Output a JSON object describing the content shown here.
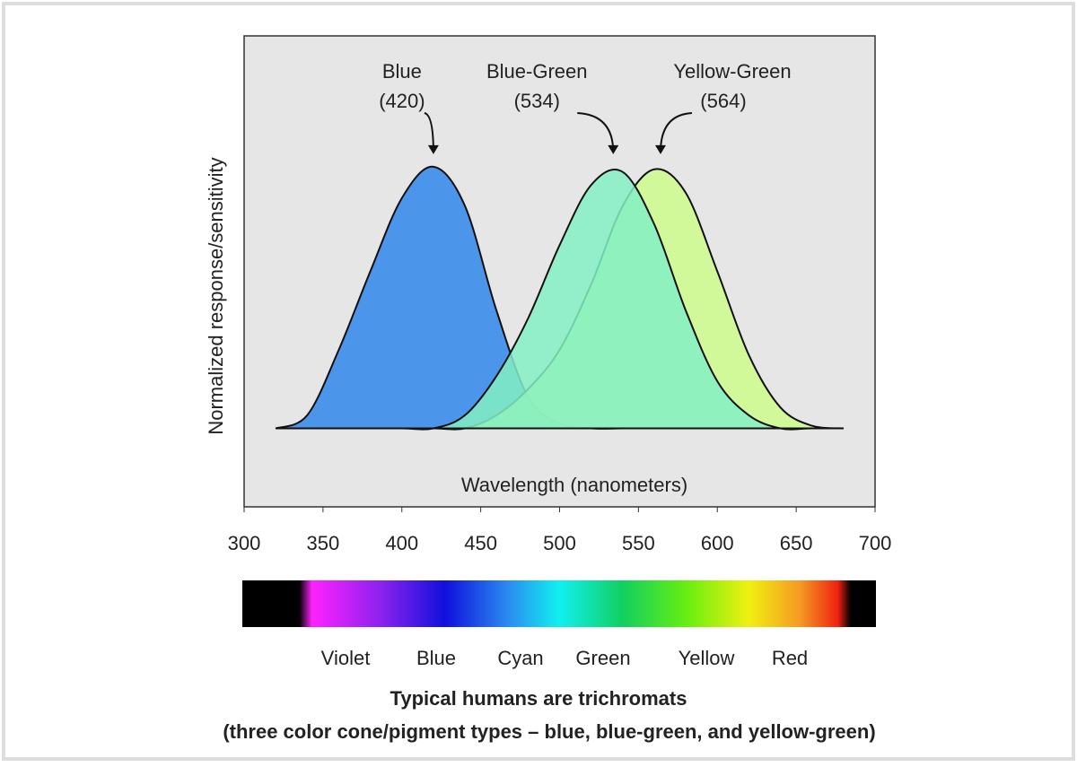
{
  "chart_data": {
    "type": "area",
    "y_label": "Normalized response/sensitivity",
    "x_label": "Wavelength (nanometers)",
    "x": [
      320,
      340,
      360,
      380,
      400,
      420,
      440,
      460,
      480,
      500,
      520,
      540,
      560,
      580,
      600,
      620,
      640,
      660,
      680
    ],
    "series": [
      {
        "name": "Blue",
        "color": "#2f86ea",
        "values": [
          0,
          0.05,
          0.3,
          0.6,
          0.88,
          1.0,
          0.85,
          0.45,
          0.12,
          0.02,
          0,
          0,
          0,
          0,
          0,
          0,
          0,
          0,
          0
        ]
      },
      {
        "name": "Yellow-Green",
        "color": "#ccfc8c",
        "values": [
          0,
          0,
          0,
          0,
          0,
          0,
          0,
          0.05,
          0.15,
          0.3,
          0.55,
          0.85,
          0.99,
          0.9,
          0.6,
          0.28,
          0.08,
          0.01,
          0
        ]
      },
      {
        "name": "Blue-Green",
        "color": "#84f0c4",
        "values": [
          0,
          0,
          0,
          0,
          0,
          0,
          0.05,
          0.2,
          0.42,
          0.7,
          0.93,
          0.98,
          0.78,
          0.45,
          0.18,
          0.05,
          0,
          0,
          0
        ]
      }
    ],
    "annotations": [
      {
        "label": "Blue",
        "sublabel": "(420)",
        "x": 420
      },
      {
        "label": "Blue-Green",
        "sublabel": "(534)",
        "x": 534
      },
      {
        "label": "Yellow-Green",
        "sublabel": "(564)",
        "x": 564
      }
    ],
    "xlim": [
      300,
      700
    ],
    "ylim": [
      -0.3,
      1.5
    ],
    "xticks": [
      300,
      350,
      400,
      450,
      500,
      550,
      600,
      650,
      700
    ],
    "spectrum_labels": [
      "Violet",
      "Blue",
      "Cyan",
      "Green",
      "Yellow",
      "Red"
    ],
    "caption": "Typical humans are trichromats",
    "subcaption": "(three color cone/pigment types – blue, blue-green, and yellow-green)"
  }
}
